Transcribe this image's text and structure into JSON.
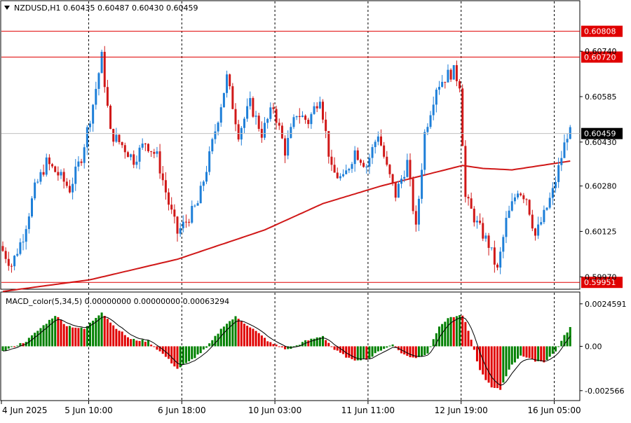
{
  "header": {
    "symbol_line": "NZDUSD,H1  0.60435 0.60487 0.60430 0.60459",
    "macd_line": "MACD_color(5,34,5) 0.00000000 0.00000000 0.00063294"
  },
  "price_axis": {
    "ticks": [
      {
        "value": 0.6074,
        "label": "0.60740"
      },
      {
        "value": 0.60585,
        "label": "0.60585"
      },
      {
        "value": 0.6043,
        "label": "0.60430"
      },
      {
        "value": 0.6028,
        "label": "0.60280"
      },
      {
        "value": 0.60125,
        "label": "0.60125"
      },
      {
        "value": 0.5997,
        "label": "0.59970"
      }
    ],
    "range": [
      0.5993,
      0.6091
    ]
  },
  "levels": [
    {
      "value": 0.60808,
      "label": "0.60808",
      "color": "#e00000"
    },
    {
      "value": 0.6072,
      "label": "0.60720",
      "color": "#e00000"
    },
    {
      "value": 0.59951,
      "label": "0.59951",
      "color": "#e00000"
    }
  ],
  "current_price": {
    "value": 0.60459,
    "label": "0.60459"
  },
  "macd_axis": {
    "ticks": [
      {
        "value": 0.0024591,
        "label": "0.0024591"
      },
      {
        "value": 0.0,
        "label": "0.00"
      },
      {
        "value": -0.002566,
        "label": "-0.002566"
      }
    ],
    "range": [
      -0.0031,
      0.0031
    ]
  },
  "time_labels": [
    {
      "index": 0,
      "label": "4 Jun 2025"
    },
    {
      "index": 30,
      "label": "5 Jun 10:00"
    },
    {
      "index": 62,
      "label": "6 Jun 18:00"
    },
    {
      "index": 94,
      "label": "10 Jun 03:00"
    },
    {
      "index": 126,
      "label": "11 Jun 11:00"
    },
    {
      "index": 158,
      "label": "12 Jun 19:00"
    },
    {
      "index": 190,
      "label": "16 Jun 05:00"
    }
  ],
  "colors": {
    "bull": "#1e7fd8",
    "bear": "#d01818",
    "ma": "#d01818",
    "macd_up": "#008000",
    "macd_down": "#e00000",
    "signal": "#000000",
    "grid": "#000000"
  },
  "chart_data": {
    "type": "candlestick",
    "symbol": "NZDUSD",
    "timeframe": "H1",
    "waypoints": [
      [
        0,
        0.60075
      ],
      [
        4,
        0.6001
      ],
      [
        8,
        0.6011
      ],
      [
        12,
        0.6027
      ],
      [
        16,
        0.6036
      ],
      [
        20,
        0.6032
      ],
      [
        24,
        0.6027
      ],
      [
        28,
        0.6038
      ],
      [
        32,
        0.6056
      ],
      [
        35,
        0.6072
      ],
      [
        38,
        0.6046
      ],
      [
        42,
        0.6042
      ],
      [
        46,
        0.6037
      ],
      [
        50,
        0.6043
      ],
      [
        54,
        0.6038
      ],
      [
        58,
        0.6022
      ],
      [
        61,
        0.6012
      ],
      [
        64,
        0.6016
      ],
      [
        68,
        0.6022
      ],
      [
        72,
        0.6038
      ],
      [
        76,
        0.6056
      ],
      [
        78,
        0.6065
      ],
      [
        82,
        0.6046
      ],
      [
        86,
        0.6056
      ],
      [
        90,
        0.6046
      ],
      [
        94,
        0.6055
      ],
      [
        98,
        0.604
      ],
      [
        102,
        0.6053
      ],
      [
        106,
        0.605
      ],
      [
        110,
        0.6059
      ],
      [
        114,
        0.6033
      ],
      [
        118,
        0.603
      ],
      [
        122,
        0.604
      ],
      [
        126,
        0.6035
      ],
      [
        130,
        0.6046
      ],
      [
        133,
        0.6034
      ],
      [
        136,
        0.6025
      ],
      [
        140,
        0.6036
      ],
      [
        143,
        0.6013
      ],
      [
        146,
        0.6046
      ],
      [
        150,
        0.6062
      ],
      [
        154,
        0.6066
      ],
      [
        156,
        0.6067
      ],
      [
        158,
        0.6063
      ],
      [
        160,
        0.6024
      ],
      [
        164,
        0.6015
      ],
      [
        168,
        0.6008
      ],
      [
        171,
        0.5999
      ],
      [
        174,
        0.6016
      ],
      [
        178,
        0.6027
      ],
      [
        181,
        0.6024
      ],
      [
        184,
        0.6011
      ],
      [
        187,
        0.6018
      ],
      [
        190,
        0.6026
      ],
      [
        193,
        0.6038
      ],
      [
        195,
        0.60459
      ]
    ],
    "ma_waypoints": [
      [
        0,
        0.5992
      ],
      [
        30,
        0.5996
      ],
      [
        60,
        0.6003
      ],
      [
        90,
        0.6013
      ],
      [
        110,
        0.6022
      ],
      [
        130,
        0.6028
      ],
      [
        150,
        0.6033
      ],
      [
        158,
        0.6035
      ],
      [
        165,
        0.6034
      ],
      [
        175,
        0.60335
      ],
      [
        195,
        0.60365
      ]
    ],
    "macd_waypoints": [
      [
        0,
        -0.0003
      ],
      [
        8,
        0.0003
      ],
      [
        14,
        0.0012
      ],
      [
        18,
        0.0018
      ],
      [
        22,
        0.0012
      ],
      [
        28,
        0.001
      ],
      [
        34,
        0.002
      ],
      [
        38,
        0.0012
      ],
      [
        44,
        0.0004
      ],
      [
        50,
        0.0003
      ],
      [
        56,
        -0.0006
      ],
      [
        60,
        -0.0013
      ],
      [
        64,
        -0.0009
      ],
      [
        70,
        -0.0001
      ],
      [
        76,
        0.0012
      ],
      [
        80,
        0.0017
      ],
      [
        86,
        0.001
      ],
      [
        92,
        0.0002
      ],
      [
        98,
        -0.0002
      ],
      [
        104,
        0.0003
      ],
      [
        110,
        0.0006
      ],
      [
        114,
        -0.0002
      ],
      [
        120,
        -0.0008
      ],
      [
        126,
        -0.0007
      ],
      [
        130,
        -0.0002
      ],
      [
        134,
        0.0001
      ],
      [
        138,
        -0.0005
      ],
      [
        142,
        -0.0007
      ],
      [
        146,
        -0.0004
      ],
      [
        150,
        0.0012
      ],
      [
        154,
        0.0017
      ],
      [
        158,
        0.0018
      ],
      [
        160,
        0.0009
      ],
      [
        164,
        -0.0014
      ],
      [
        168,
        -0.0024
      ],
      [
        171,
        -0.0025
      ],
      [
        174,
        -0.0013
      ],
      [
        178,
        -0.0005
      ],
      [
        182,
        -0.0008
      ],
      [
        186,
        -0.0009
      ],
      [
        190,
        -0.0003
      ],
      [
        193,
        0.0006
      ],
      [
        195,
        0.0011
      ]
    ],
    "candle_count": 196
  }
}
